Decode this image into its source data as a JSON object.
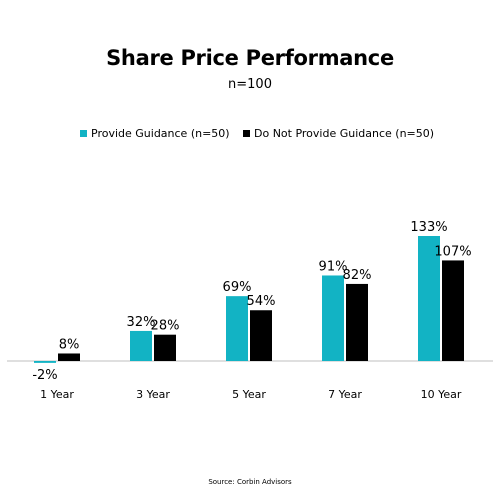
{
  "chart_data": {
    "type": "bar",
    "title": "Share Price Performance",
    "subtitle": "n=100",
    "categories": [
      "1 Year",
      "3 Year",
      "5 Year",
      "7 Year",
      "10 Year"
    ],
    "series": [
      {
        "name": "Provide Guidance (n=50)",
        "values": [
          -2,
          32,
          69,
          91,
          133
        ],
        "labels": [
          "-2%",
          "32%",
          "69%",
          "91%",
          "133%"
        ],
        "color": "#12b3c4"
      },
      {
        "name": "Do Not Provide Guidance (n=50)",
        "values": [
          8,
          28,
          54,
          82,
          107
        ],
        "labels": [
          "8%",
          "28%",
          "54%",
          "82%",
          "107%"
        ],
        "color": "#000000"
      }
    ],
    "ylim": [
      -2,
      133
    ],
    "grid": false,
    "legend": "top",
    "source": "Source: Corbin Advisors"
  }
}
